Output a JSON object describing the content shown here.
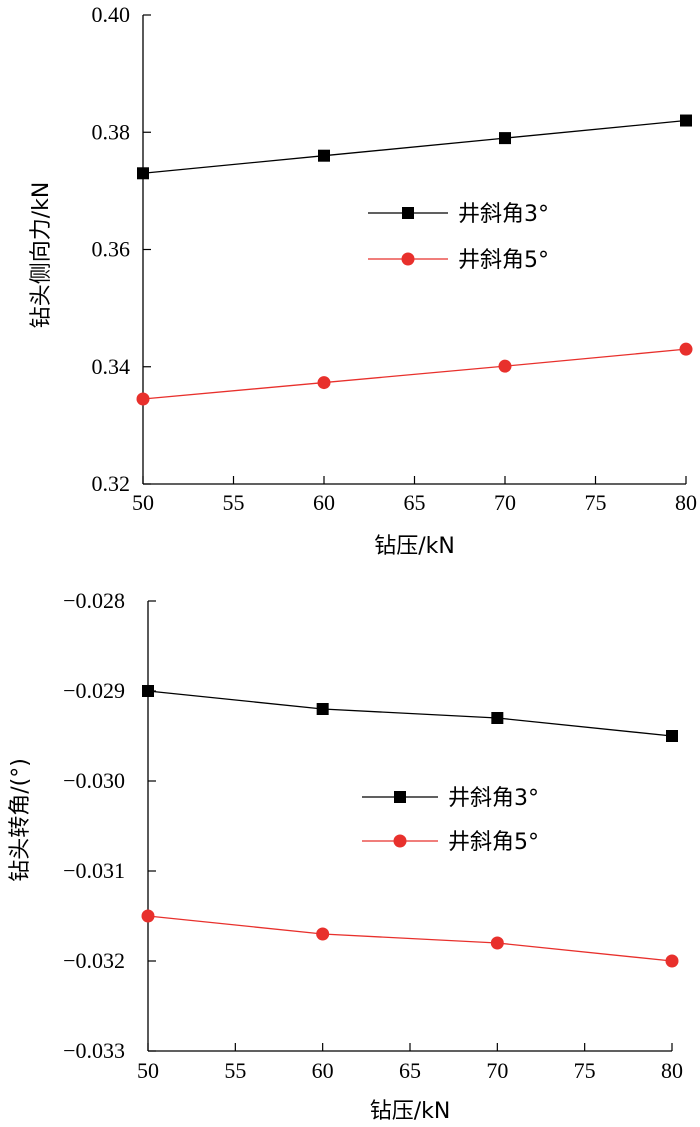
{
  "chart_data": [
    {
      "type": "line",
      "title": "",
      "xlabel": "钻压/kN",
      "ylabel": "钻头侧向力/kN",
      "xlim": [
        50,
        80
      ],
      "ylim": [
        0.32,
        0.4
      ],
      "xticks": [
        "50",
        "55",
        "60",
        "65",
        "70",
        "75",
        "80"
      ],
      "yticks": [
        "0.32",
        "0.34",
        "0.36",
        "0.38",
        "0.40"
      ],
      "grid": false,
      "legend_position": "center-right",
      "x": [
        50,
        60,
        70,
        80
      ],
      "series": [
        {
          "name": "井斜角3°",
          "values": [
            0.373,
            0.376,
            0.379,
            0.382
          ],
          "color": "#000000",
          "marker": "square"
        },
        {
          "name": "井斜角5°",
          "values": [
            0.3345,
            0.3373,
            0.3401,
            0.343
          ],
          "color": "#e8302c",
          "marker": "circle"
        }
      ]
    },
    {
      "type": "line",
      "title": "",
      "xlabel": "钻压/kN",
      "ylabel": "钻头转角/(°)",
      "xlim": [
        50,
        80
      ],
      "ylim": [
        -0.033,
        -0.028
      ],
      "xticks": [
        "50",
        "55",
        "60",
        "65",
        "70",
        "75",
        "80"
      ],
      "yticks": [
        "−0.033",
        "−0.032",
        "−0.031",
        "−0.030",
        "−0.029",
        "−0.028"
      ],
      "grid": false,
      "legend_position": "center-right",
      "x": [
        50,
        60,
        70,
        80
      ],
      "series": [
        {
          "name": "井斜角3°",
          "values": [
            -0.029,
            -0.0292,
            -0.0293,
            -0.0295
          ],
          "color": "#000000",
          "marker": "square"
        },
        {
          "name": "井斜角5°",
          "values": [
            -0.0315,
            -0.0317,
            -0.0318,
            -0.032
          ],
          "color": "#e8302c",
          "marker": "circle"
        }
      ]
    }
  ]
}
